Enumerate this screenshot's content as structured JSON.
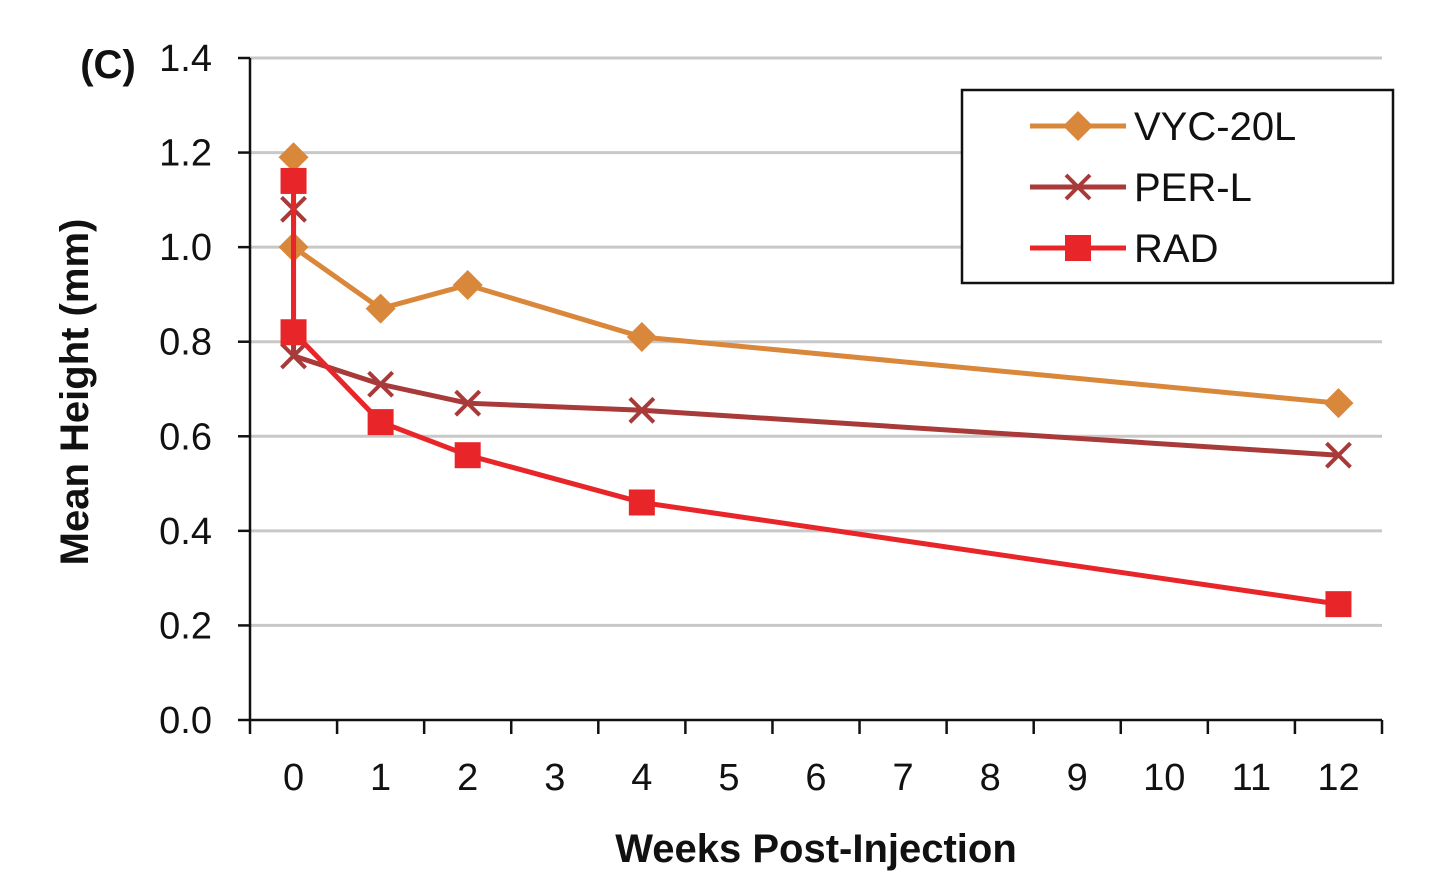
{
  "chart_data": {
    "type": "line",
    "panel_label": "(C)",
    "xlabel": "Weeks Post-Injection",
    "ylabel": "Mean Height (mm)",
    "xlim": [
      -0.5,
      12.5
    ],
    "ylim": [
      0,
      1.4
    ],
    "xticks": [
      0,
      1,
      2,
      3,
      4,
      5,
      6,
      7,
      8,
      9,
      10,
      11,
      12
    ],
    "xtick_labels": [
      "0",
      "1",
      "2",
      "3",
      "4",
      "5",
      "6",
      "7",
      "8",
      "9",
      "10",
      "11",
      "12"
    ],
    "yticks": [
      0,
      0.2,
      0.4,
      0.6,
      0.8,
      1.0,
      1.2,
      1.4
    ],
    "ytick_labels": [
      "0.0",
      "0.2",
      "0.4",
      "0.6",
      "0.8",
      "1.0",
      "1.2",
      "1.4"
    ],
    "grid": "horizontal",
    "legend_position": "top-right",
    "series": [
      {
        "name": "VYC-20L",
        "color": "#d9873a",
        "marker": "diamond",
        "x": [
          0,
          0,
          1,
          2,
          4,
          12
        ],
        "y": [
          1.19,
          1.0,
          0.87,
          0.92,
          0.81,
          0.67
        ]
      },
      {
        "name": "PER-L",
        "color": "#a83a3a",
        "marker": "x",
        "x": [
          0,
          0,
          1,
          2,
          4,
          12
        ],
        "y": [
          1.08,
          0.77,
          0.71,
          0.67,
          0.655,
          0.56
        ]
      },
      {
        "name": "RAD",
        "color": "#e8262a",
        "marker": "square",
        "x": [
          0,
          0,
          1,
          2,
          4,
          12
        ],
        "y": [
          1.14,
          0.82,
          0.63,
          0.56,
          0.46,
          0.245
        ]
      }
    ]
  }
}
